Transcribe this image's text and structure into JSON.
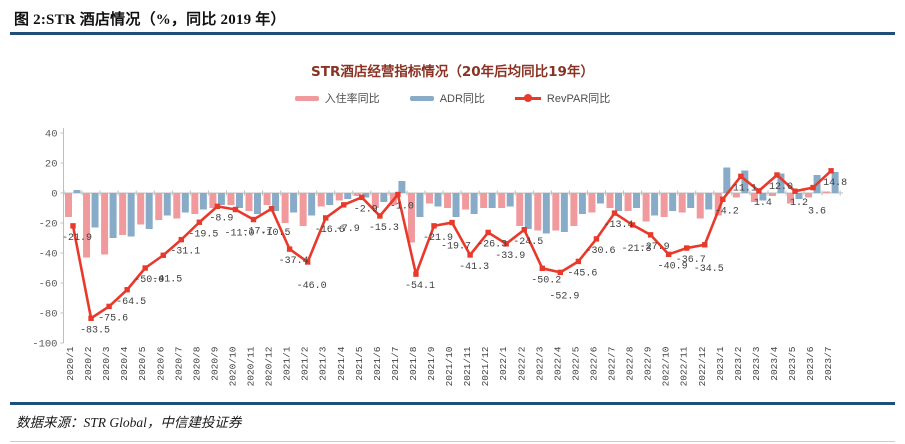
{
  "page": {
    "header_title": "图 2:STR 酒店情况（%，同比 2019 年）",
    "footer_source": "数据来源：STR Global，中信建投证券"
  },
  "chart_data": {
    "type": "bar+line",
    "title": "STR酒店经营指标情况（20年后均同比19年）",
    "legend_position": "top",
    "grid": false,
    "ylim": [
      -100,
      40
    ],
    "yticks": [
      40,
      20,
      0,
      -20,
      -40,
      -60,
      -80,
      -100
    ],
    "categories": [
      "2020/1",
      "2020/2",
      "2020/3",
      "2020/4",
      "2020/5",
      "2020/6",
      "2020/7",
      "2020/8",
      "2020/9",
      "2020/10",
      "2020/11",
      "2020/12",
      "2021/1",
      "2021/2",
      "2021/3",
      "2021/4",
      "2021/5",
      "2021/6",
      "2021/7",
      "2021/8",
      "2021/9",
      "2021/10",
      "2021/11",
      "2021/12",
      "2022/1",
      "2022/2",
      "2022/3",
      "2022/4",
      "2022/5",
      "2022/6",
      "2022/7",
      "2022/8",
      "2022/9",
      "2022/10",
      "2022/11",
      "2022/12",
      "2023/1",
      "2023/2",
      "2023/3",
      "2023/4",
      "2023/5",
      "2023/6",
      "2023/7"
    ],
    "series": [
      {
        "name": "入住率同比",
        "type": "bar",
        "color": "#F09A9D",
        "values": [
          -16,
          -43,
          -41,
          -28,
          -21,
          -18,
          -17,
          -14,
          -10,
          -8,
          -12,
          -8,
          -20,
          -22,
          -9,
          -5,
          -2,
          -10,
          -8,
          -33,
          -7,
          -10,
          -11,
          -10,
          -10,
          -22,
          -25,
          -25,
          -22,
          -13,
          -10,
          -12,
          -19,
          -16,
          -13,
          -17,
          -15,
          -3,
          -6,
          -2,
          -7,
          -3,
          1
        ]
      },
      {
        "name": "ADR同比",
        "type": "bar",
        "color": "#88ACC8",
        "values": [
          2,
          -23,
          -30,
          -29,
          -24,
          -15,
          -13,
          -11,
          -8,
          -10,
          -14,
          -12,
          -13,
          -15,
          -8,
          -4,
          -3,
          -6,
          8,
          -16,
          -9,
          -16,
          -14,
          -10,
          -9,
          -24,
          -27,
          -26,
          -14,
          -7,
          -12,
          -10,
          -15,
          -12,
          -10,
          -11,
          17,
          15,
          -5,
          13,
          -4,
          12,
          14
        ]
      },
      {
        "name": "RevPAR同比",
        "type": "line",
        "color": "#E8392B",
        "labeled": true,
        "values": [
          -21.9,
          -83.5,
          -75.6,
          -64.5,
          -50.0,
          -41.5,
          -31.1,
          -19.5,
          -8.9,
          -11.0,
          -17.7,
          -10.5,
          -37.4,
          -46.0,
          -16.6,
          -7.9,
          -2.9,
          -15.3,
          -1.0,
          -54.1,
          -21.9,
          -19.7,
          -41.3,
          -26.3,
          -33.9,
          -24.5,
          -50.2,
          -52.9,
          -45.6,
          -30.6,
          -13.4,
          -21.3,
          -27.9,
          -40.9,
          -36.7,
          -34.5,
          -4.2,
          11.1,
          1.4,
          12.0,
          1.2,
          3.6,
          14.8
        ]
      }
    ],
    "colors": {
      "axis": "#BFBFBF",
      "tick_label": "#595959",
      "data_label": "#404040",
      "title": "#8A3324",
      "rule": "#1F4E79"
    }
  }
}
